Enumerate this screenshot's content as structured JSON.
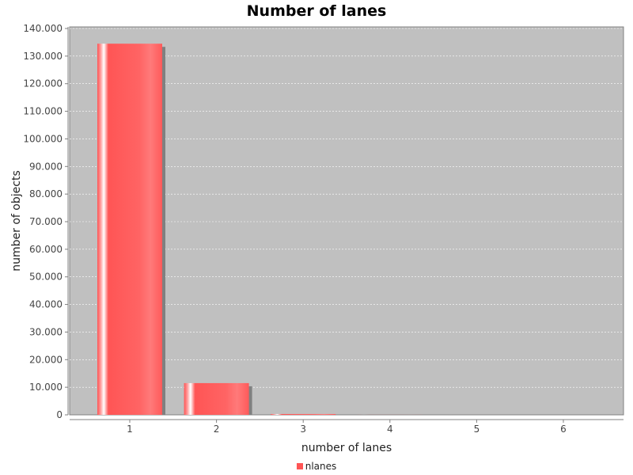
{
  "chart_data": {
    "type": "bar",
    "title": "Number of lanes",
    "xlabel": "number of lanes",
    "ylabel": "number of objects",
    "categories": [
      "1",
      "2",
      "3",
      "4",
      "5",
      "6"
    ],
    "series": [
      {
        "name": "nlanes",
        "values": [
          134500,
          11500,
          300,
          20,
          5,
          2
        ]
      }
    ],
    "ylim": [
      0,
      140000
    ],
    "yticks": [
      0,
      10000,
      20000,
      30000,
      40000,
      50000,
      60000,
      70000,
      80000,
      90000,
      100000,
      110000,
      120000,
      130000,
      140000
    ],
    "ytick_labels": [
      "0",
      "10.000",
      "20.000",
      "30.000",
      "40.000",
      "50.000",
      "60.000",
      "70.000",
      "80.000",
      "90.000",
      "100.000",
      "110.000",
      "120.000",
      "130.000",
      "140.000"
    ],
    "grid": true,
    "legend": "bottom-center",
    "colors": {
      "bar": "#ff5555",
      "plot_background": "#c0c0c0",
      "gridline": "#ffffff",
      "shadow": "#808080"
    }
  }
}
